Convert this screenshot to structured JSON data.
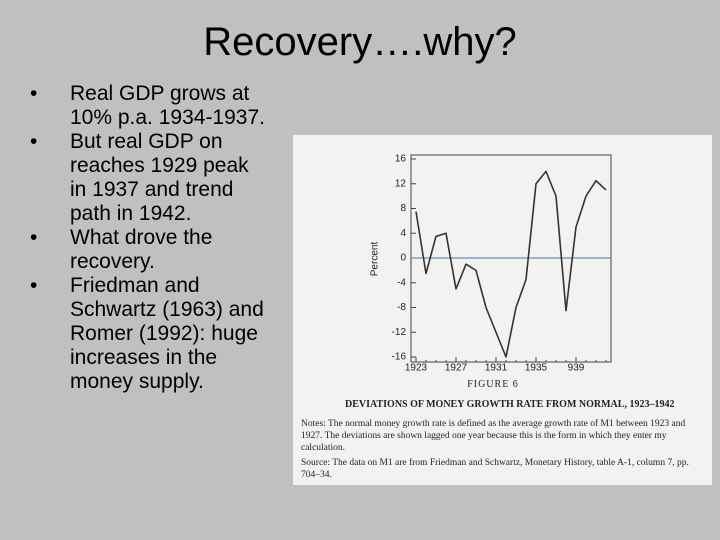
{
  "slide": {
    "title": "Recovery….why?",
    "bullets": [
      "Real GDP grows at 10% p.a. 1934-1937.",
      "But real GDP on reaches 1929 peak in 1937 and trend path in 1942.",
      "What drove the recovery.",
      "Friedman and Schwartz (1963) and Romer (1992): huge increases in the money supply."
    ],
    "figure": {
      "figure_label": "FIGURE 6",
      "caption": "DEVIATIONS OF MONEY GROWTH RATE FROM NORMAL, 1923–1942",
      "notes": "Notes: The normal money growth rate is defined as the average growth rate of M1 between 1923 and 1927. The deviations are shown lagged one year because this is the form in which they enter my calculation.",
      "source": "Source: The data on M1 are from Friedman and Schwartz, Monetary History, table A-1, column 7, pp. 704–34."
    }
  },
  "chart_data": {
    "type": "line",
    "y_label": "Percent",
    "x": [
      1923,
      1924,
      1925,
      1926,
      1927,
      1928,
      1929,
      1930,
      1931,
      1932,
      1933,
      1934,
      1935,
      1936,
      1937,
      1938,
      1939,
      1940,
      1941,
      1942
    ],
    "series": [
      {
        "name": "Deviation",
        "color": "#333333",
        "values": [
          7.5,
          -2.5,
          3.5,
          4,
          -5,
          -1,
          -2,
          -8,
          -12,
          -16,
          -8,
          -3.5,
          12,
          14,
          10,
          -8.5,
          5,
          10,
          12.5,
          11
        ]
      }
    ],
    "xlim": [
      1922.5,
      1942.5
    ],
    "xticks": [
      1923,
      1927,
      1931,
      1935,
      {
        "value": 1939,
        "label": "939"
      }
    ],
    "ylim": [
      -16,
      16
    ],
    "yticks": [
      16,
      12,
      8,
      4,
      0,
      -4,
      -8,
      -12,
      -16
    ],
    "zero_line_color": "#6f8db8"
  }
}
